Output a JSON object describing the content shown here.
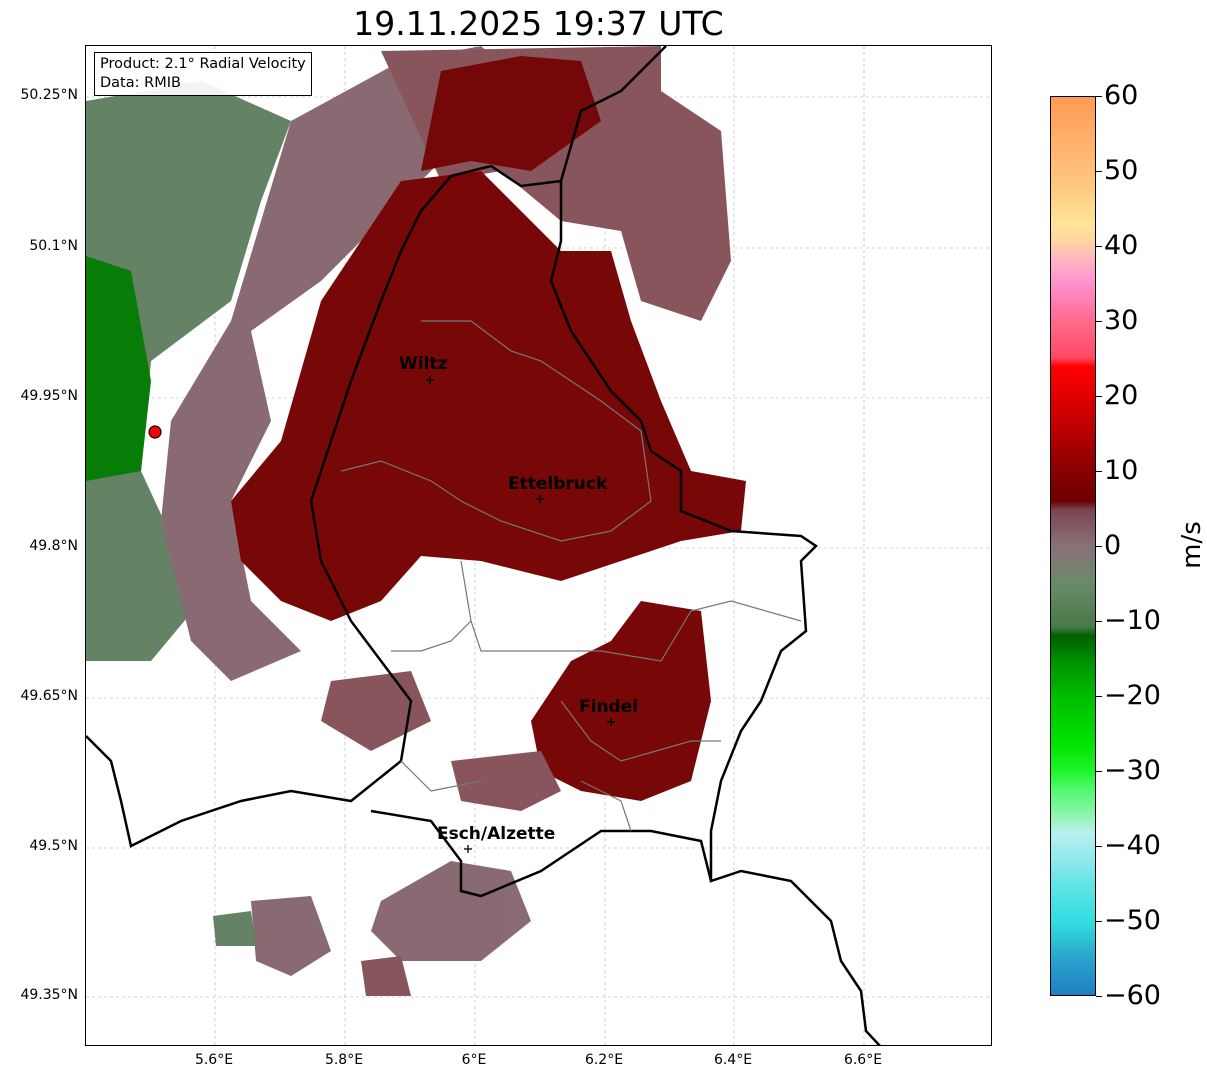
{
  "title": "19.11.2025 19:37 UTC",
  "info": {
    "product": "Product: 2.1° Radial Velocity",
    "data": "Data: RMIB"
  },
  "lat_ticks": [
    "50.25°N",
    "50.1°N",
    "49.95°N",
    "49.8°N",
    "49.65°N",
    "49.5°N",
    "49.35°N"
  ],
  "lon_ticks": [
    "5.6°E",
    "5.8°E",
    "6°E",
    "6.2°E",
    "6.4°E",
    "6.6°E"
  ],
  "colorbar": {
    "unit": "m/s",
    "ticks": [
      "60",
      "50",
      "40",
      "30",
      "20",
      "10",
      "0",
      "−10",
      "−20",
      "−30",
      "−40",
      "−50",
      "−60"
    ],
    "range": [
      -60,
      60
    ]
  },
  "cities": [
    {
      "name": "Wiltz"
    },
    {
      "name": "Ettelbruck"
    },
    {
      "name": "Findel"
    },
    {
      "name": "Esch/Alzette"
    }
  ],
  "colors": {
    "inbound_dark": "#700000",
    "outbound_green": "#5f7f5f",
    "mauve": "#855058",
    "radar_site": "#ff0000"
  }
}
